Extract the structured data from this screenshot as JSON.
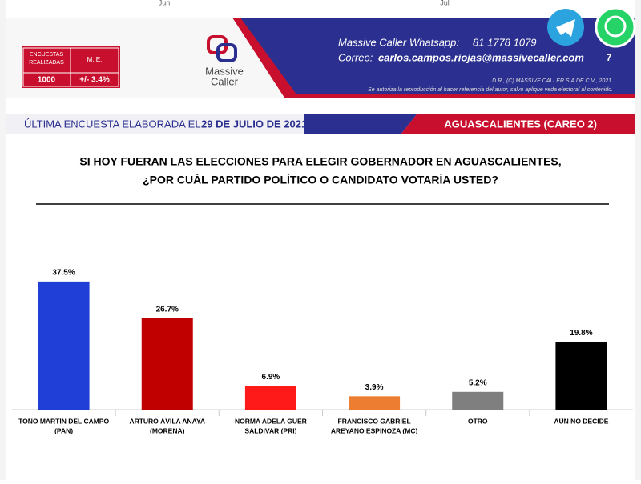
{
  "header": {
    "months": [
      "Jun",
      "Jul"
    ],
    "stats": {
      "labels": [
        "ENCUESTAS REALIZADAS",
        "M. E."
      ],
      "values": [
        "1000",
        "+/- 3.4%"
      ]
    },
    "logo": [
      "Massive",
      "Caller"
    ],
    "contact": {
      "whatsapp_label": "Massive Caller Whatsapp:",
      "whatsapp": "81 1778 1079",
      "email_label": "Correo:",
      "email": "carlos.campos.riojas@massivecaller.com",
      "page": "7"
    },
    "copyright": "D.R., (C) MASSIVE CALLER S.A DE C.V., 2021.",
    "notice": "Se autoriza la reproducción al hacer referencia del autor, salvo aplique veda electoral al contenido."
  },
  "banner": {
    "prefix": "ÚLTIMA ENCUESTA ELABORADA EL",
    "date": "29 DE JULIO DE 2021",
    "region": "AGUASCALIENTES (CAREO 2)"
  },
  "chart_data": {
    "type": "bar",
    "title": [
      "SI HOY FUERAN LAS ELECCIONES PARA ELEGIR GOBERNADOR EN AGUASCALIENTES,",
      "¿POR CUÁL PARTIDO POLÍTICO O CANDIDATO VOTARÍA USTED?"
    ],
    "categories": [
      [
        "TOÑO MARTÍN DEL CAMPO",
        "(PAN)"
      ],
      [
        "ARTURO ÁVILA ANAYA",
        "(MORENA)"
      ],
      [
        "NORMA ADELA GUER",
        "SALDIVAR (PRI)"
      ],
      [
        "FRANCISCO GABRIEL",
        "AREYANO ESPINOZA (MC)"
      ],
      [
        "OTRO"
      ],
      [
        "AÚN NO DECIDE"
      ]
    ],
    "values": [
      37.5,
      26.7,
      6.9,
      3.9,
      5.2,
      19.8
    ],
    "value_labels": [
      "37.5%",
      "26.7%",
      "6.9%",
      "3.9%",
      "5.2%",
      "19.8%"
    ],
    "colors": [
      "#1f3fd6",
      "#c00000",
      "#ff1a1a",
      "#ed7d31",
      "#7f7f7f",
      "#000000"
    ]
  }
}
